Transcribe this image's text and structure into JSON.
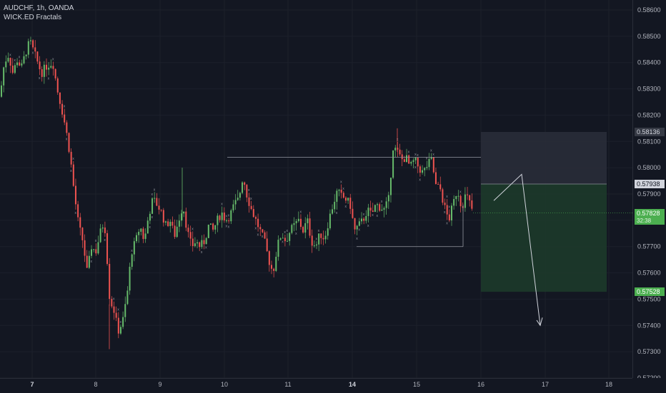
{
  "legend": {
    "symbol": "AUDCHF, 1h, OANDA",
    "indicator": "WICK.ED Fractals"
  },
  "price_axis": {
    "ticks": [
      "0.58600",
      "0.58500",
      "0.58400",
      "0.58300",
      "0.58200",
      "0.58100",
      "0.58000",
      "0.57900",
      "0.57800",
      "0.57700",
      "0.57600",
      "0.57500",
      "0.57400",
      "0.57300",
      "0.57200"
    ],
    "labels": [
      {
        "text": "0.58136",
        "color": "#363a45",
        "fg": "#d1d4dc"
      },
      {
        "text": "0.57938",
        "color": "#d1d4dc",
        "fg": "#131722"
      },
      {
        "text": "0.57828",
        "sub": "32:38",
        "color": "#4caf50",
        "fg": "#ffffff"
      },
      {
        "text": "0.57528",
        "color": "#4caf50",
        "fg": "#ffffff"
      }
    ]
  },
  "time_axis": {
    "labels": [
      {
        "text": "7",
        "bold": true
      },
      {
        "text": "8",
        "bold": false
      },
      {
        "text": "9",
        "bold": false
      },
      {
        "text": "10",
        "bold": false
      },
      {
        "text": "11",
        "bold": false
      },
      {
        "text": "14",
        "bold": true
      },
      {
        "text": "15",
        "bold": false
      },
      {
        "text": "16",
        "bold": false
      },
      {
        "text": "17",
        "bold": false
      },
      {
        "text": "18",
        "bold": false
      }
    ]
  },
  "chart_data": {
    "type": "candlestick",
    "symbol": "AUDCHF",
    "interval": "1h",
    "colors": {
      "up": "#66bb6a",
      "down": "#ef5350",
      "background": "#131722",
      "grid": "#1e222d"
    },
    "price_range": [
      0.572,
      0.5865
    ],
    "current_price": 0.57828,
    "position": {
      "entry": 0.57938,
      "target": 0.57528,
      "stop": 0.58136
    },
    "levels": {
      "resistance": 0.5804,
      "support": 0.577
    }
  }
}
